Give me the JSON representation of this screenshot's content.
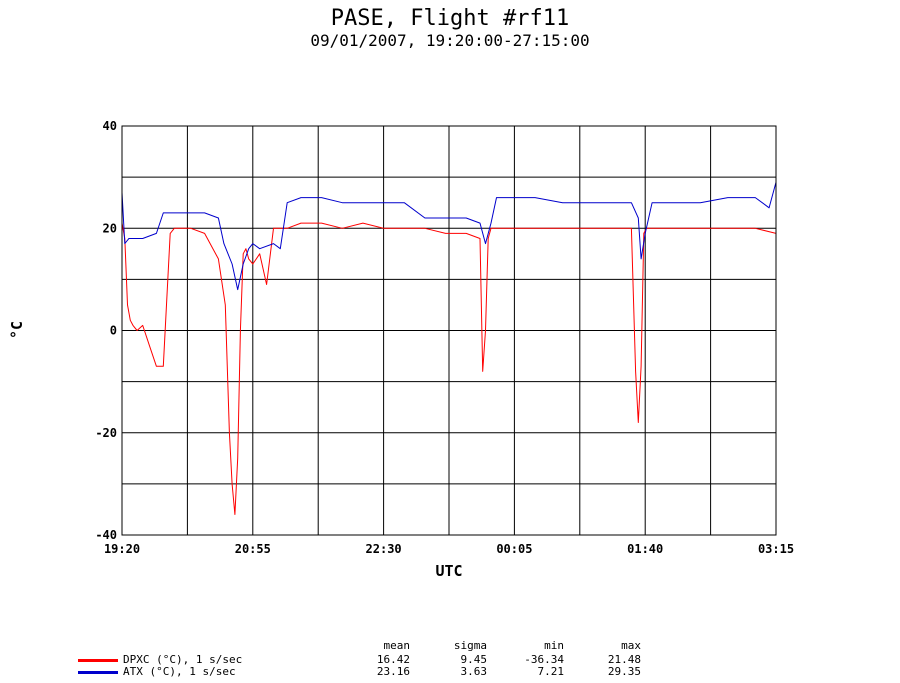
{
  "chart_data": {
    "type": "line",
    "title": "PASE, Flight #rf11",
    "subtitle": "09/01/2007, 19:20:00-27:15:00",
    "xlabel": "UTC",
    "ylabel": "°C",
    "xlim": [
      "19:20",
      "03:15"
    ],
    "ylim": [
      -40,
      40
    ],
    "grid": true,
    "x_ticks": [
      "19:20",
      "20:55",
      "22:30",
      "00:05",
      "01:40",
      "03:15"
    ],
    "y_ticks": [
      "40",
      "20",
      "0",
      "-20",
      "-40"
    ],
    "series": [
      {
        "name": "DPXC (°C), 1 s/sec",
        "color": "#ff0000",
        "x": [
          "19:20",
          "19:22",
          "19:24",
          "19:26",
          "19:28",
          "19:31",
          "19:35",
          "19:40",
          "19:45",
          "19:50",
          "19:55",
          "19:58",
          "20:00",
          "20:02",
          "20:05",
          "20:10",
          "20:20",
          "20:30",
          "20:35",
          "20:38",
          "20:40",
          "20:42",
          "20:44",
          "20:46",
          "20:48",
          "20:50",
          "20:52",
          "20:55",
          "21:00",
          "21:05",
          "21:10",
          "21:15",
          "21:20",
          "21:30",
          "21:45",
          "22:00",
          "22:15",
          "22:30",
          "22:45",
          "23:00",
          "23:15",
          "23:30",
          "23:40",
          "23:42",
          "23:44",
          "23:46",
          "23:48",
          "23:55",
          "00:05",
          "00:20",
          "00:40",
          "01:00",
          "01:15",
          "01:30",
          "01:33",
          "01:35",
          "01:37",
          "01:39",
          "01:41",
          "01:45",
          "02:00",
          "02:20",
          "02:40",
          "03:00",
          "03:15"
        ],
        "values": [
          21,
          18,
          5,
          2,
          1,
          0,
          1,
          -3,
          -7,
          -7,
          19,
          20,
          20,
          20,
          20,
          20,
          19,
          14,
          5,
          -20,
          -30,
          -36,
          -25,
          0,
          15,
          16,
          14,
          13,
          15,
          9,
          20,
          20,
          20,
          21,
          21,
          20,
          21,
          20,
          20,
          20,
          19,
          19,
          18,
          -8,
          0,
          18,
          20,
          20,
          20,
          20,
          20,
          20,
          20,
          20,
          -8,
          -18,
          -7,
          19,
          20,
          20,
          20,
          20,
          20,
          20,
          19
        ]
      },
      {
        "name": "ATX (°C), 1 s/sec",
        "color": "#0000cc",
        "x": [
          "19:20",
          "19:22",
          "19:25",
          "19:35",
          "19:45",
          "19:50",
          "19:55",
          "20:00",
          "20:10",
          "20:20",
          "20:30",
          "20:34",
          "20:40",
          "20:44",
          "20:48",
          "20:52",
          "20:55",
          "21:00",
          "21:10",
          "21:15",
          "21:20",
          "21:30",
          "21:45",
          "22:00",
          "22:15",
          "22:30",
          "22:45",
          "23:00",
          "23:15",
          "23:30",
          "23:40",
          "23:44",
          "23:48",
          "23:52",
          "24:00",
          "00:05",
          "00:20",
          "00:40",
          "01:00",
          "01:15",
          "01:30",
          "01:35",
          "01:37",
          "01:40",
          "01:45",
          "02:00",
          "02:20",
          "02:40",
          "03:00",
          "03:10",
          "03:15"
        ],
        "values": [
          27,
          17,
          18,
          18,
          19,
          23,
          23,
          23,
          23,
          23,
          22,
          17,
          13,
          8,
          13,
          16,
          17,
          16,
          17,
          16,
          25,
          26,
          26,
          25,
          25,
          25,
          25,
          22,
          22,
          22,
          21,
          17,
          21,
          26,
          26,
          26,
          26,
          25,
          25,
          25,
          25,
          22,
          14,
          19,
          25,
          25,
          25,
          26,
          26,
          24,
          29
        ]
      }
    ],
    "stats": {
      "headers": [
        "mean",
        "sigma",
        "min",
        "max"
      ],
      "rows": [
        {
          "mean": "16.42",
          "sigma": "9.45",
          "min": "-36.34",
          "max": "21.48"
        },
        {
          "mean": "23.16",
          "sigma": "3.63",
          "min": "7.21",
          "max": "29.35"
        }
      ]
    }
  }
}
